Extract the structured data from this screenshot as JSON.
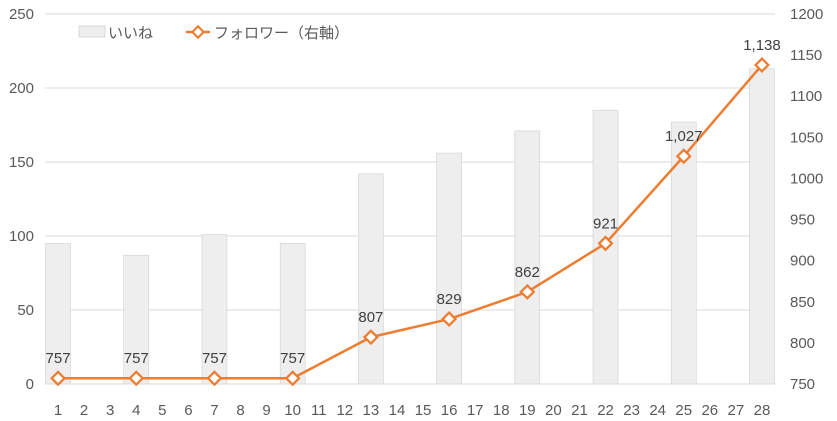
{
  "chart_data": {
    "type": "bar+line",
    "x": [
      1,
      2,
      3,
      4,
      5,
      6,
      7,
      8,
      9,
      10,
      11,
      12,
      13,
      14,
      15,
      16,
      17,
      18,
      19,
      20,
      21,
      22,
      23,
      24,
      25,
      26,
      27,
      28
    ],
    "series": [
      {
        "name": "いいね",
        "type": "bar",
        "axis": "left",
        "x": [
          1,
          4,
          7,
          10,
          13,
          16,
          19,
          22,
          25,
          28
        ],
        "values": [
          95,
          87,
          101,
          95,
          142,
          156,
          171,
          185,
          177,
          213
        ],
        "color": "#eeeeee"
      },
      {
        "name": "フォロワー（右軸）",
        "type": "line",
        "axis": "right",
        "x": [
          1,
          4,
          7,
          10,
          13,
          16,
          19,
          22,
          25,
          28
        ],
        "values": [
          757,
          757,
          757,
          757,
          807,
          829,
          862,
          921,
          1027,
          1138
        ],
        "data_labels": [
          "757",
          "757",
          "757",
          "757",
          "807",
          "829",
          "862",
          "921",
          "1,027",
          "1,138"
        ],
        "color": "#ed7d31"
      }
    ],
    "y_left": {
      "range": [
        0,
        250
      ],
      "ticks": [
        0,
        50,
        100,
        150,
        200,
        250
      ]
    },
    "y_right": {
      "range": [
        750,
        1200
      ],
      "ticks": [
        750,
        800,
        850,
        900,
        950,
        1000,
        1050,
        1100,
        1150,
        1200
      ]
    },
    "grid": true,
    "legend": "top-left",
    "title": "",
    "xlabel": "",
    "ylabel": ""
  }
}
